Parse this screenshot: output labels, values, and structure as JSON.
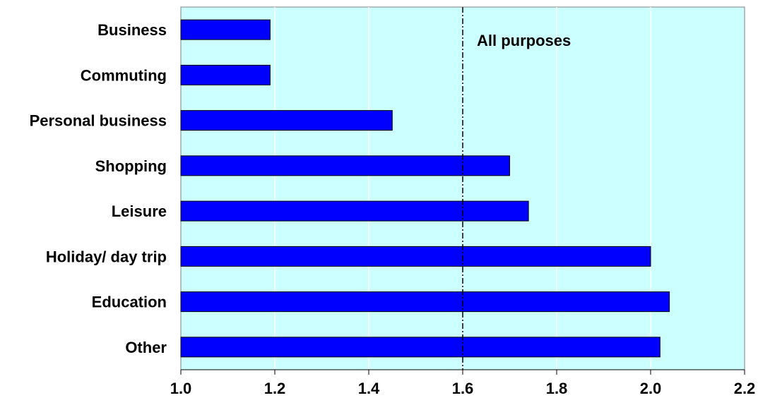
{
  "chart_data": {
    "type": "bar",
    "orientation": "horizontal",
    "categories": [
      "Business",
      "Commuting",
      "Personal business",
      "Shopping",
      "Leisure",
      "Holiday/ day trip",
      "Education",
      "Other"
    ],
    "values": [
      1.19,
      1.19,
      1.45,
      1.7,
      1.74,
      2.0,
      2.04,
      2.02
    ],
    "xlim": [
      1.0,
      2.2
    ],
    "xticks": [
      "1.0",
      "1.2",
      "1.4",
      "1.6",
      "1.8",
      "2.0",
      "2.2"
    ],
    "reference_line": {
      "value": 1.6,
      "label": "All purposes",
      "style": "dash-dot"
    },
    "grid": "vertical",
    "legend": "none",
    "colors": {
      "bar": "#0000ff",
      "bar_edge": "#000000",
      "plot_background": "#ccffff",
      "grid": "#ffffff",
      "reference_line": "#000000"
    }
  }
}
